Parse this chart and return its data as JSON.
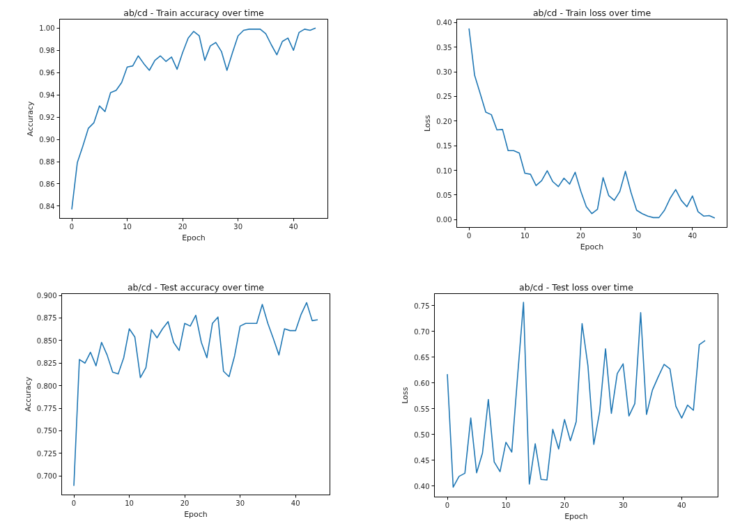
{
  "chart_data": [
    {
      "type": "line",
      "title": "ab/cd - Train accuracy over time",
      "xlabel": "Epoch",
      "ylabel": "Accuracy",
      "color": "#1f77b4",
      "x": [
        0,
        1,
        2,
        3,
        4,
        5,
        6,
        7,
        8,
        9,
        10,
        11,
        12,
        13,
        14,
        15,
        16,
        17,
        18,
        19,
        20,
        21,
        22,
        23,
        24,
        25,
        26,
        27,
        28,
        29,
        30,
        31,
        32,
        33,
        34,
        35,
        36,
        37,
        38,
        39,
        40,
        41,
        42,
        43,
        44
      ],
      "values": [
        0.837,
        0.879,
        0.894,
        0.91,
        0.915,
        0.93,
        0.925,
        0.942,
        0.944,
        0.951,
        0.965,
        0.966,
        0.975,
        0.968,
        0.962,
        0.971,
        0.975,
        0.97,
        0.974,
        0.963,
        0.978,
        0.991,
        0.997,
        0.993,
        0.971,
        0.984,
        0.987,
        0.979,
        0.962,
        0.978,
        0.993,
        0.998,
        0.999,
        0.999,
        0.999,
        0.995,
        0.985,
        0.976,
        0.988,
        0.991,
        0.98,
        0.996,
        0.999,
        0.998,
        1.0
      ],
      "xlim": [
        -2.2,
        46.2
      ],
      "xticks": [
        0,
        10,
        20,
        30,
        40
      ],
      "ylim": [
        0.829,
        1.008
      ],
      "yticks": [
        0.84,
        0.86,
        0.88,
        {
          "value": 0.9,
          "label": "0.90"
        },
        0.92,
        0.94,
        0.96,
        0.98,
        {
          "value": 1,
          "label": "1.00"
        }
      ]
    },
    {
      "type": "line",
      "title": "ab/cd - Train loss over time",
      "xlabel": "Epoch",
      "ylabel": "Loss",
      "color": "#1f77b4",
      "x": [
        0,
        1,
        2,
        3,
        4,
        5,
        6,
        7,
        8,
        9,
        10,
        11,
        12,
        13,
        14,
        15,
        16,
        17,
        18,
        19,
        20,
        21,
        22,
        23,
        24,
        25,
        26,
        27,
        28,
        29,
        30,
        31,
        32,
        33,
        34,
        35,
        36,
        37,
        38,
        39,
        40,
        41,
        42,
        43,
        44
      ],
      "values": [
        0.388,
        0.293,
        0.256,
        0.218,
        0.213,
        0.182,
        0.183,
        0.14,
        0.14,
        0.135,
        0.094,
        0.092,
        0.069,
        0.079,
        0.099,
        0.077,
        0.067,
        0.084,
        0.072,
        0.096,
        0.058,
        0.026,
        0.012,
        0.021,
        0.085,
        0.049,
        0.039,
        0.057,
        0.098,
        0.055,
        0.019,
        0.012,
        0.007,
        0.004,
        0.004,
        0.019,
        0.043,
        0.061,
        0.039,
        0.026,
        0.048,
        0.016,
        0.007,
        0.008,
        0.003
      ],
      "xlim": [
        -2.2,
        46.2
      ],
      "xticks": [
        0,
        10,
        20,
        30,
        40
      ],
      "ylim": [
        -0.016,
        0.407
      ],
      "yticks": [
        {
          "value": 0,
          "label": "0.00"
        },
        0.05,
        {
          "value": 0.1,
          "label": "0.10"
        },
        0.15,
        {
          "value": 0.2,
          "label": "0.20"
        },
        0.25,
        {
          "value": 0.3,
          "label": "0.30"
        },
        0.35,
        {
          "value": 0.4,
          "label": "0.40"
        }
      ]
    },
    {
      "type": "line",
      "title": "ab/cd - Test accuracy over time",
      "xlabel": "Epoch",
      "ylabel": "Accuracy",
      "color": "#1f77b4",
      "x": [
        0,
        1,
        2,
        3,
        4,
        5,
        6,
        7,
        8,
        9,
        10,
        11,
        12,
        13,
        14,
        15,
        16,
        17,
        18,
        19,
        20,
        21,
        22,
        23,
        24,
        25,
        26,
        27,
        28,
        29,
        30,
        31,
        32,
        33,
        34,
        35,
        36,
        37,
        38,
        39,
        40,
        41,
        42,
        43,
        44
      ],
      "values": [
        0.689,
        0.829,
        0.825,
        0.837,
        0.822,
        0.848,
        0.834,
        0.815,
        0.813,
        0.831,
        0.863,
        0.854,
        0.809,
        0.82,
        0.862,
        0.853,
        0.863,
        0.871,
        0.848,
        0.839,
        0.869,
        0.866,
        0.878,
        0.848,
        0.831,
        0.869,
        0.876,
        0.816,
        0.81,
        0.833,
        0.866,
        0.869,
        0.869,
        0.869,
        0.89,
        0.869,
        0.852,
        0.834,
        0.863,
        0.861,
        0.861,
        0.879,
        0.892,
        0.872,
        0.873
      ],
      "xlim": [
        -2.2,
        46.2
      ],
      "xticks": [
        0,
        10,
        20,
        30,
        40
      ],
      "ylim": [
        0.679,
        0.902
      ],
      "yticks": [
        {
          "value": 0.7,
          "label": "0.700"
        },
        0.725,
        {
          "value": 0.75,
          "label": "0.750"
        },
        0.775,
        {
          "value": 0.8,
          "label": "0.800"
        },
        0.825,
        {
          "value": 0.85,
          "label": "0.850"
        },
        0.875,
        {
          "value": 0.9,
          "label": "0.900"
        }
      ]
    },
    {
      "type": "line",
      "title": "ab/cd - Test loss over time",
      "xlabel": "Epoch",
      "ylabel": "Loss",
      "color": "#1f77b4",
      "x": [
        0,
        1,
        2,
        3,
        4,
        5,
        6,
        7,
        8,
        9,
        10,
        11,
        12,
        13,
        14,
        15,
        16,
        17,
        18,
        19,
        20,
        21,
        22,
        23,
        24,
        25,
        26,
        27,
        28,
        29,
        30,
        31,
        32,
        33,
        34,
        35,
        36,
        37,
        38,
        39,
        40,
        41,
        42,
        43,
        44
      ],
      "values": [
        0.617,
        0.398,
        0.419,
        0.425,
        0.532,
        0.426,
        0.464,
        0.568,
        0.447,
        0.428,
        0.485,
        0.466,
        0.614,
        0.756,
        0.404,
        0.482,
        0.413,
        0.412,
        0.51,
        0.472,
        0.529,
        0.488,
        0.525,
        0.715,
        0.633,
        0.481,
        0.544,
        0.666,
        0.541,
        0.618,
        0.637,
        0.536,
        0.56,
        0.736,
        0.539,
        0.586,
        0.612,
        0.636,
        0.627,
        0.555,
        0.532,
        0.557,
        0.547,
        0.674,
        0.682
      ],
      "xlim": [
        -2.2,
        46.2
      ],
      "xticks": [
        0,
        10,
        20,
        30,
        40
      ],
      "ylim": [
        0.379,
        0.773
      ],
      "yticks": [
        {
          "value": 0.4,
          "label": "0.40"
        },
        0.45,
        {
          "value": 0.5,
          "label": "0.50"
        },
        0.55,
        {
          "value": 0.6,
          "label": "0.60"
        },
        0.65,
        {
          "value": 0.7,
          "label": "0.70"
        },
        0.75
      ]
    }
  ]
}
